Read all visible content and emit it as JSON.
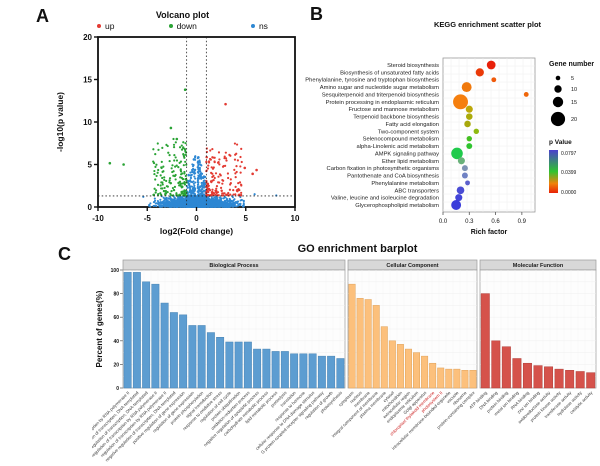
{
  "panels": {
    "a": "A",
    "b": "B",
    "c": "C"
  },
  "chart_data": [
    {
      "type": "scatter",
      "name": "volcano",
      "title": "Volcano plot",
      "legend": [
        {
          "label": "up",
          "color": "#e33b33"
        },
        {
          "label": "down",
          "color": "#2aa335"
        },
        {
          "label": "ns",
          "color": "#2d87d3"
        }
      ],
      "xlabel": "log2(Fold change)",
      "ylabel": "-log10(p value)",
      "xlim": [
        -10,
        10
      ],
      "ylim": [
        0,
        20
      ],
      "xticks": [
        -10,
        -5,
        0,
        5,
        10
      ],
      "yticks": [
        0,
        5,
        10,
        15,
        20
      ],
      "vlines": [
        -1,
        1
      ],
      "hline": 1.3,
      "clusters": {
        "ns_bulk": {
          "n": 2300,
          "x_sigma": 1.7,
          "x_clip": 4.8,
          "y_scale": 0.5,
          "y_max": 1.27
        },
        "ns_spike": {
          "n": 520,
          "y_max": 6.2
        },
        "down": {
          "n": 165,
          "x_reach": 3.4,
          "y_max": 8.0
        },
        "up": {
          "n": 165,
          "x_reach": 3.6,
          "y_max": 7.5
        }
      },
      "outliers": {
        "down": [
          [
            -1.15,
            13.8
          ],
          [
            -8.8,
            5.15
          ],
          [
            -7.4,
            5.0
          ],
          [
            -2.6,
            9.3
          ],
          [
            -2.0,
            8.0
          ]
        ],
        "up": [
          [
            2.95,
            12.1
          ],
          [
            6.1,
            4.35
          ],
          [
            5.7,
            3.9
          ],
          [
            4.9,
            4.6
          ]
        ],
        "ns": [
          [
            8.1,
            1.35
          ],
          [
            5.9,
            1.5
          ],
          [
            -5.4,
            1.2
          ]
        ]
      }
    },
    {
      "type": "scatter",
      "name": "kegg",
      "title": "KEGG enrichment scatter plot",
      "xlabel": "Rich factor",
      "xticks": [
        0.0,
        0.3,
        0.6,
        0.9
      ],
      "xlim": [
        0,
        1.05
      ],
      "rows": [
        {
          "pathway": "Steroid biosynthesis",
          "rich_factor": 0.55,
          "gene_number": 11,
          "color": "#e8200a"
        },
        {
          "pathway": "Biosynthesis of unsaturated fatty acids",
          "rich_factor": 0.42,
          "gene_number": 10,
          "color": "#ea3a08"
        },
        {
          "pathway": "Phenylalanine, tyrosine and tryptophan biosynthesis",
          "rich_factor": 0.58,
          "gene_number": 4,
          "color": "#f05a0a"
        },
        {
          "pathway": "Amino sugar and nucleotide sugar metabolism",
          "rich_factor": 0.27,
          "gene_number": 13,
          "color": "#f0790c"
        },
        {
          "pathway": "Sesquiterpenoid and triterpenoid biosynthesis",
          "rich_factor": 0.95,
          "gene_number": 4,
          "color": "#ef660a"
        },
        {
          "pathway": "Protein processing in endoplasmic reticulum",
          "rich_factor": 0.2,
          "gene_number": 22,
          "color": "#f57f0e"
        },
        {
          "pathway": "Fructose and mannose metabolism",
          "rich_factor": 0.3,
          "gene_number": 8,
          "color": "#bca80a"
        },
        {
          "pathway": "Terpenoid backbone biosynthesis",
          "rich_factor": 0.3,
          "gene_number": 7,
          "color": "#abab0b"
        },
        {
          "pathway": "Fatty acid elongation",
          "rich_factor": 0.28,
          "gene_number": 7,
          "color": "#a8a80c"
        },
        {
          "pathway": "Two-component system",
          "rich_factor": 0.38,
          "gene_number": 5,
          "color": "#8fba10"
        },
        {
          "pathway": "Selenocompound metabolism",
          "rich_factor": 0.3,
          "gene_number": 5,
          "color": "#45c022"
        },
        {
          "pathway": "alpha-Linolenic acid metabolism",
          "rich_factor": 0.3,
          "gene_number": 6,
          "color": "#2fc42f"
        },
        {
          "pathway": "AMPK signaling pathway",
          "rich_factor": 0.16,
          "gene_number": 16,
          "color": "#1fca4b"
        },
        {
          "pathway": "Ether lipid metabolism",
          "rich_factor": 0.21,
          "gene_number": 8,
          "color": "#69b17a"
        },
        {
          "pathway": "Carbon fixation in photosynthetic organisms",
          "rich_factor": 0.25,
          "gene_number": 6,
          "color": "#7e93b4"
        },
        {
          "pathway": "Pantothenate and CoA biosynthesis",
          "rich_factor": 0.25,
          "gene_number": 6,
          "color": "#7082c4"
        },
        {
          "pathway": "Phenylalanine metabolism",
          "rich_factor": 0.28,
          "gene_number": 4,
          "color": "#5c60cc"
        },
        {
          "pathway": "ABC transporters",
          "rich_factor": 0.2,
          "gene_number": 9,
          "color": "#4a4cd4"
        },
        {
          "pathway": "Valine, leucine and isoleucine degradation",
          "rich_factor": 0.18,
          "gene_number": 8,
          "color": "#4244d8"
        },
        {
          "pathway": "Glycerophospholipid metabolism",
          "rich_factor": 0.15,
          "gene_number": 13,
          "color": "#3a3cda"
        }
      ],
      "legend_gene_number": {
        "title": "Gene number",
        "sizes": [
          5,
          10,
          15,
          20
        ]
      },
      "legend_pvalue": {
        "title": "p Value",
        "labels": [
          "0.0797",
          "0.0399",
          "0.0000"
        ],
        "stops": [
          {
            "offset": 0,
            "color": "#4b40ce"
          },
          {
            "offset": 0.5,
            "color": "#2fc32f"
          },
          {
            "offset": 0.78,
            "color": "#f0820a"
          },
          {
            "offset": 1,
            "color": "#e82208"
          }
        ]
      }
    },
    {
      "type": "bar",
      "name": "go",
      "title": "GO enrichment barplot",
      "ylabel": "Percent of genes(%)",
      "ylim": [
        0,
        100
      ],
      "yticks": [
        0,
        20,
        40,
        60,
        80,
        100
      ],
      "facets": [
        {
          "label": "Biological Process",
          "fill": "#5d9dd1",
          "stroke": "#4984b3",
          "highlight_indexes": [],
          "categories": [
            "positive regulation of transcription by RNA polymerase II",
            "regulation of transcription, DNA-templated",
            "positive regulation of transcription, DNA-templated",
            "negative regulation of transcription by RNA polymerase II",
            "regulation of transcription by RNA polymerase II",
            "negative regulation of transcription, DNA-templated",
            "positive regulation of gene expression",
            "regulation of gene expression",
            "protein phosphorylation",
            "signal transduction",
            "response to oxidative stress",
            "regulation of cell cycle",
            "protein ubiquitination",
            "oxidation-reduction process",
            "negative regulation of apoptotic process",
            "carbohydrate metabolic process",
            "lipid metabolic process",
            "proteolysis",
            "translation",
            "response to hormone",
            "cellular response to DNA damage stimulus",
            "G protein-coupled receptor signaling pathway",
            "regulation of growth",
            "photosynthesis"
          ],
          "values": [
            98,
            98,
            90,
            88,
            72,
            64,
            62,
            53,
            53,
            47,
            43,
            39,
            39,
            39,
            33,
            33,
            31,
            31,
            29,
            29,
            29,
            27,
            27,
            25
          ]
        },
        {
          "label": "Cellular Component",
          "fill": "#fcc07c",
          "stroke": "#dfa159",
          "highlight_indexes": [
            10,
            11
          ],
          "categories": [
            "cytoplasm",
            "nucleus",
            "membrane",
            "integral component of membrane",
            "plasma membrane",
            "cytosol",
            "mitochondrion",
            "extracellular region",
            "endoplasmic reticulum",
            "Golgi apparatus",
            "chloroplast thylakoid membrane",
            "photosystem II",
            "intracellular membrane-bounded organelle",
            "vacuole",
            "ribosome",
            "protein-containing complex"
          ],
          "values": [
            88,
            76,
            75,
            70,
            52,
            40,
            37,
            33,
            30,
            27,
            21,
            17,
            16,
            16,
            15,
            15
          ]
        },
        {
          "label": "Molecular Function",
          "fill": "#d5524b",
          "stroke": "#b03f3a",
          "highlight_indexes": [],
          "categories": [
            "ATP binding",
            "DNA binding",
            "protein binding",
            "metal ion binding",
            "RNA binding",
            "zinc ion binding",
            "oxidoreductase activity",
            "protein kinase activity",
            "transferase activity",
            "hydrolase activity",
            "catalytic activity"
          ],
          "values": [
            80,
            40,
            35,
            25,
            21,
            19,
            18,
            16,
            15,
            14,
            13
          ]
        }
      ]
    }
  ]
}
